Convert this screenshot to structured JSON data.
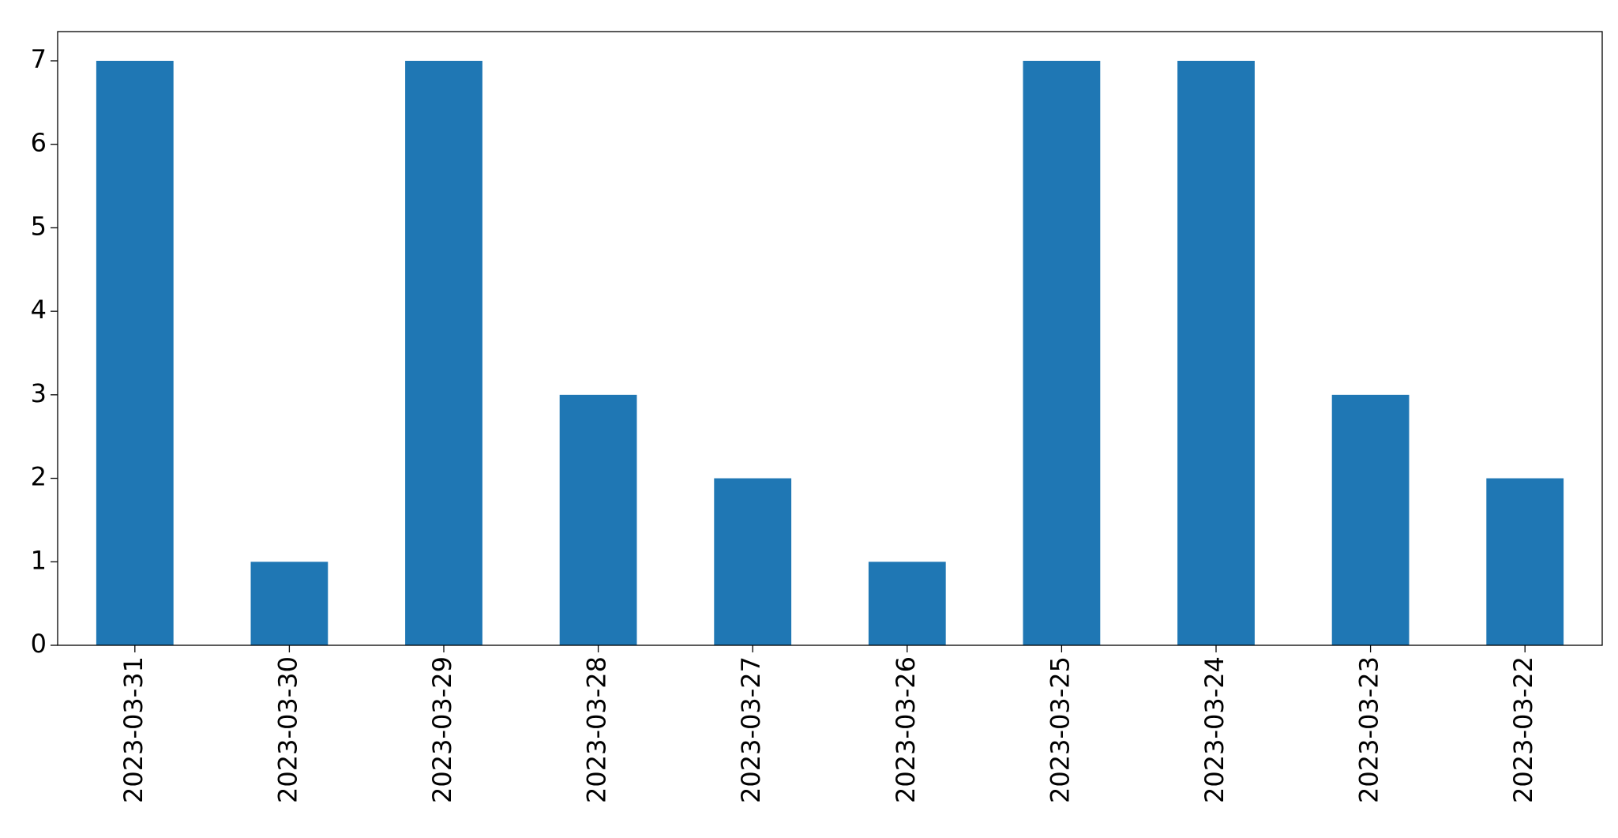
{
  "chart_data": {
    "type": "bar",
    "categories": [
      "2023-03-31",
      "2023-03-30",
      "2023-03-29",
      "2023-03-28",
      "2023-03-27",
      "2023-03-26",
      "2023-03-25",
      "2023-03-24",
      "2023-03-23",
      "2023-03-22"
    ],
    "values": [
      7,
      1,
      7,
      3,
      2,
      1,
      7,
      7,
      3,
      2
    ],
    "color": "#1f77b4",
    "ylim": [
      0,
      7.35
    ],
    "yticks": [
      0,
      1,
      2,
      3,
      4,
      5,
      6,
      7
    ],
    "grid": false
  }
}
